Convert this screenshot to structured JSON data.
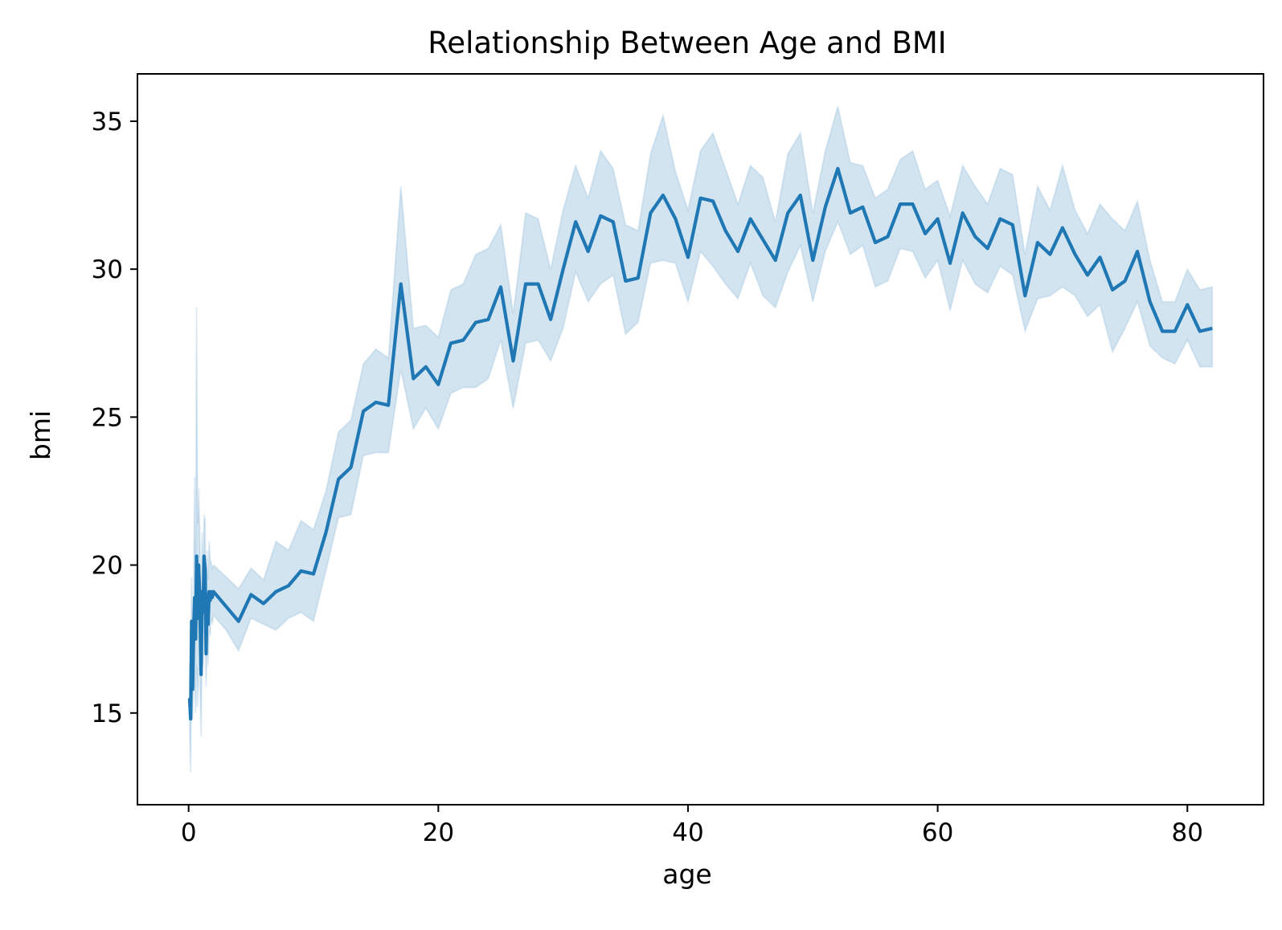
{
  "chart_data": {
    "type": "line",
    "title": "Relationship Between Age and BMI",
    "xlabel": "age",
    "ylabel": "bmi",
    "xlim": [
      -4.1,
      86.1
    ],
    "ylim": [
      11.9,
      36.6
    ],
    "xticks": [
      0,
      20,
      40,
      60,
      80
    ],
    "yticks": [
      15,
      20,
      25,
      30,
      35
    ],
    "grid": false,
    "legend": "none",
    "colors": {
      "line": "#1f77b4",
      "band": "#1f77b4",
      "band_opacity": 0.2
    },
    "series": [
      {
        "x": [
          0.08,
          0.16,
          0.24,
          0.32,
          0.4,
          0.48,
          0.56,
          0.64,
          0.72,
          0.8,
          0.88,
          1.0,
          1.08,
          1.16,
          1.24,
          1.32,
          1.4,
          1.48,
          1.56,
          1.64,
          1.72,
          1.8,
          1.88,
          2,
          3,
          4,
          5,
          6,
          7,
          8,
          9,
          10,
          11,
          12,
          13,
          14,
          15,
          16,
          17,
          18,
          19,
          20,
          21,
          22,
          23,
          24,
          25,
          26,
          27,
          28,
          29,
          30,
          31,
          32,
          33,
          34,
          35,
          36,
          37,
          38,
          39,
          40,
          41,
          42,
          43,
          44,
          45,
          46,
          47,
          48,
          49,
          50,
          51,
          52,
          53,
          54,
          55,
          56,
          57,
          58,
          59,
          60,
          61,
          62,
          63,
          64,
          65,
          66,
          67,
          68,
          69,
          70,
          71,
          72,
          73,
          74,
          75,
          76,
          77,
          78,
          79,
          80,
          81,
          82
        ],
        "y": [
          15.5,
          14.8,
          18.1,
          15.8,
          17.7,
          18.9,
          17.5,
          20.3,
          18.2,
          20.0,
          19.0,
          16.3,
          19.1,
          18.4,
          20.3,
          19.8,
          17.0,
          19.0,
          18.0,
          19.1,
          18.8,
          19.1,
          18.9,
          19.1,
          18.6,
          18.1,
          19.0,
          18.7,
          19.1,
          19.3,
          19.8,
          19.7,
          21.1,
          22.9,
          23.3,
          25.2,
          25.5,
          25.4,
          29.5,
          26.3,
          26.7,
          26.1,
          27.5,
          27.6,
          28.2,
          28.3,
          29.4,
          26.9,
          29.5,
          29.5,
          28.3,
          30.0,
          31.6,
          30.6,
          31.8,
          31.6,
          29.6,
          29.7,
          31.9,
          32.5,
          31.7,
          30.4,
          32.4,
          32.3,
          31.3,
          30.6,
          31.7,
          31.0,
          30.3,
          31.9,
          32.5,
          30.3,
          32.1,
          33.4,
          31.9,
          32.1,
          30.9,
          31.1,
          32.2,
          32.2,
          31.2,
          31.7,
          30.2,
          31.9,
          31.1,
          30.7,
          31.7,
          31.5,
          29.1,
          30.9,
          30.5,
          31.4,
          30.5,
          29.8,
          30.4,
          29.3,
          29.6,
          30.6,
          28.9,
          27.9,
          27.9,
          28.8,
          27.9,
          28.0
        ],
        "lower": [
          14.3,
          13.0,
          16.6,
          14.8,
          16.0,
          16.3,
          15.0,
          16.6,
          15.2,
          16.5,
          16.4,
          14.2,
          17.0,
          16.6,
          18.5,
          17.5,
          15.9,
          17.5,
          16.6,
          17.8,
          17.6,
          18.2,
          18.0,
          18.3,
          17.8,
          17.1,
          18.2,
          18.0,
          17.8,
          18.2,
          18.4,
          18.1,
          19.8,
          21.6,
          21.7,
          23.7,
          23.8,
          23.8,
          26.6,
          24.6,
          25.3,
          24.6,
          25.8,
          26.0,
          26.0,
          26.3,
          27.6,
          25.3,
          27.5,
          27.6,
          26.9,
          28.0,
          29.9,
          28.9,
          29.5,
          29.8,
          27.8,
          28.2,
          30.2,
          30.3,
          30.2,
          28.9,
          30.6,
          30.1,
          29.5,
          29.0,
          30.2,
          29.1,
          28.7,
          29.9,
          30.8,
          28.9,
          30.6,
          31.6,
          30.5,
          30.8,
          29.4,
          29.6,
          30.7,
          30.6,
          29.7,
          30.3,
          28.6,
          30.3,
          29.5,
          29.2,
          30.1,
          29.8,
          27.9,
          29.0,
          29.1,
          29.4,
          29.1,
          28.4,
          28.8,
          27.2,
          28.0,
          28.9,
          27.4,
          27.0,
          26.8,
          27.6,
          26.7,
          26.7
        ],
        "upper": [
          16.5,
          16.8,
          19.6,
          17.1,
          19.4,
          23.0,
          20.2,
          28.7,
          21.4,
          22.6,
          21.3,
          18.5,
          21.1,
          20.0,
          21.7,
          21.5,
          18.6,
          20.5,
          19.5,
          20.8,
          20.2,
          20.1,
          19.9,
          20.0,
          19.6,
          19.2,
          19.9,
          19.5,
          20.8,
          20.5,
          21.5,
          21.2,
          22.5,
          24.5,
          24.9,
          26.8,
          27.3,
          27.0,
          32.8,
          28.0,
          28.1,
          27.7,
          29.3,
          29.5,
          30.5,
          30.7,
          31.5,
          28.5,
          31.9,
          31.7,
          30.0,
          32.0,
          33.5,
          32.4,
          34.0,
          33.4,
          31.5,
          31.3,
          33.9,
          35.2,
          33.3,
          32.0,
          34.0,
          34.6,
          33.4,
          32.2,
          33.5,
          33.1,
          31.6,
          33.9,
          34.6,
          31.9,
          34.0,
          35.5,
          33.6,
          33.5,
          32.4,
          32.7,
          33.7,
          34.0,
          32.7,
          33.0,
          31.8,
          33.5,
          32.8,
          32.2,
          33.4,
          33.2,
          30.5,
          32.8,
          32.0,
          33.5,
          32.0,
          31.2,
          32.2,
          31.7,
          31.3,
          32.3,
          30.3,
          28.9,
          28.9,
          30.0,
          29.3,
          29.4
        ]
      }
    ]
  }
}
